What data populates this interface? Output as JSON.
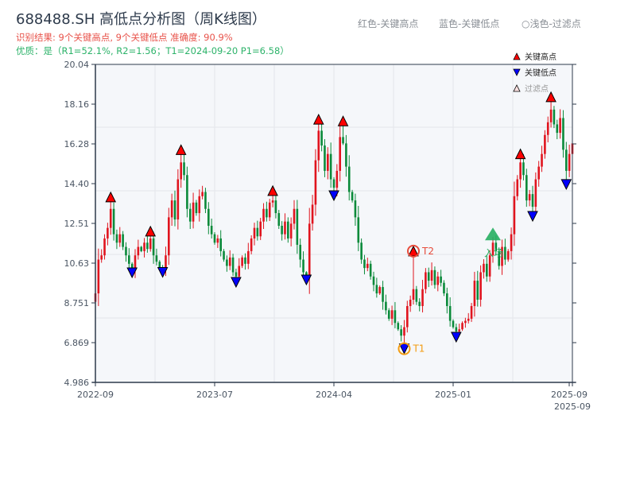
{
  "header": {
    "title": "688488.SH 高低点分析图（周K线图）",
    "result_line": "识别结果: 9个关键高点, 9个关键低点  准确度: 90.9%",
    "quality_line": "优质：是（R1=52.1%, R2=1.56；T1=2024-09-20 P1=6.58）",
    "legend_top": [
      "红色-关键高点",
      "蓝色-关键低点",
      "○浅色-过滤点"
    ]
  },
  "colors": {
    "up": "#e0141e",
    "down": "#0a8a3a",
    "high_marker": "#ff0000",
    "low_marker": "#0000ff",
    "t1": "#f39c12",
    "t2": "#e74c3c",
    "entry": "#27ae60",
    "plot_bg": "#f5f7fa"
  },
  "chart_data": {
    "type": "candlestick",
    "title": "688488.SH 高低点分析图（周K线图）",
    "ylim": [
      4.986,
      20.04
    ],
    "y_ticks": [
      "20.04",
      "18.16",
      "16.28",
      "14.40",
      "12.51",
      "10.63",
      "8.751",
      "6.869",
      "4.986"
    ],
    "x_ticks": [
      "2022-09",
      "2023-07",
      "2024-04",
      "2025-01",
      "2025-09",
      "2025-09"
    ],
    "grid": true,
    "legend_position": "top-right",
    "legend": [
      "关键高点",
      "关键低点",
      "过滤点"
    ],
    "closes": [
      9.2,
      10.8,
      11.0,
      11.8,
      12.3,
      13.2,
      12.0,
      11.6,
      12.0,
      11.4,
      11.0,
      10.6,
      10.3,
      11.0,
      11.4,
      11.2,
      11.6,
      11.3,
      11.8,
      11.0,
      10.7,
      10.4,
      10.3,
      11.0,
      12.8,
      13.6,
      12.7,
      14.6,
      15.4,
      14.8,
      13.2,
      12.6,
      13.5,
      13.0,
      13.8,
      14.0,
      13.2,
      12.4,
      12.0,
      11.6,
      11.8,
      11.2,
      10.8,
      10.5,
      10.9,
      10.2,
      10.0,
      10.5,
      10.9,
      10.6,
      11.2,
      11.8,
      12.3,
      11.9,
      12.6,
      13.2,
      12.8,
      13.5,
      13.6,
      13.0,
      12.4,
      12.0,
      12.6,
      11.8,
      12.5,
      13.2,
      11.5,
      10.8,
      10.2,
      10.0,
      12.5,
      13.4,
      15.5,
      16.9,
      16.2,
      15.0,
      15.8,
      14.6,
      14.2,
      15.0,
      16.6,
      16.3,
      15.2,
      14.0,
      13.6,
      12.8,
      11.6,
      10.8,
      10.4,
      10.6,
      10.0,
      9.6,
      9.2,
      9.5,
      8.8,
      8.4,
      8.0,
      8.4,
      7.8,
      7.5,
      7.2,
      7.6,
      8.6,
      8.9,
      9.4,
      8.8,
      8.6,
      9.4,
      10.2,
      9.8,
      10.3,
      9.6,
      10.0,
      9.7,
      9.2,
      8.6,
      7.9,
      7.6,
      7.4,
      7.5,
      7.8,
      7.9,
      8.0,
      8.6,
      9.8,
      8.9,
      10.2,
      10.6,
      10.0,
      11.0,
      11.6,
      11.2,
      10.5,
      11.4,
      10.8,
      11.2,
      12.0,
      13.8,
      14.6,
      15.4,
      14.8,
      13.6,
      13.9,
      13.3,
      14.6,
      15.2,
      15.8,
      16.7,
      17.3,
      17.9,
      17.2,
      16.8,
      17.5,
      16.0,
      15.0,
      15.8,
      16.3
    ],
    "key_highs": [
      {
        "i": 5,
        "price": 13.76
      },
      {
        "i": 18,
        "price": 12.14
      },
      {
        "i": 28,
        "price": 16.0
      },
      {
        "i": 58,
        "price": 14.06
      },
      {
        "i": 73,
        "price": 17.44
      },
      {
        "i": 81,
        "price": 17.36
      },
      {
        "i": 104,
        "price": 11.2
      },
      {
        "i": 139,
        "price": 15.8
      },
      {
        "i": 149,
        "price": 18.5
      }
    ],
    "key_lows": [
      {
        "i": 12,
        "price": 10.18
      },
      {
        "i": 22,
        "price": 10.2
      },
      {
        "i": 46,
        "price": 9.73
      },
      {
        "i": 69,
        "price": 9.84
      },
      {
        "i": 78,
        "price": 13.83
      },
      {
        "i": 101,
        "price": 6.58
      },
      {
        "i": 118,
        "price": 7.13
      },
      {
        "i": 143,
        "price": 12.85
      },
      {
        "i": 154,
        "price": 14.36
      }
    ],
    "annotations": [
      {
        "label": "T1",
        "i": 101,
        "price": 6.58
      },
      {
        "label": "T2",
        "i": 104,
        "price": 11.2
      },
      {
        "label": "入场",
        "i": 130,
        "price": 11.9
      }
    ]
  }
}
